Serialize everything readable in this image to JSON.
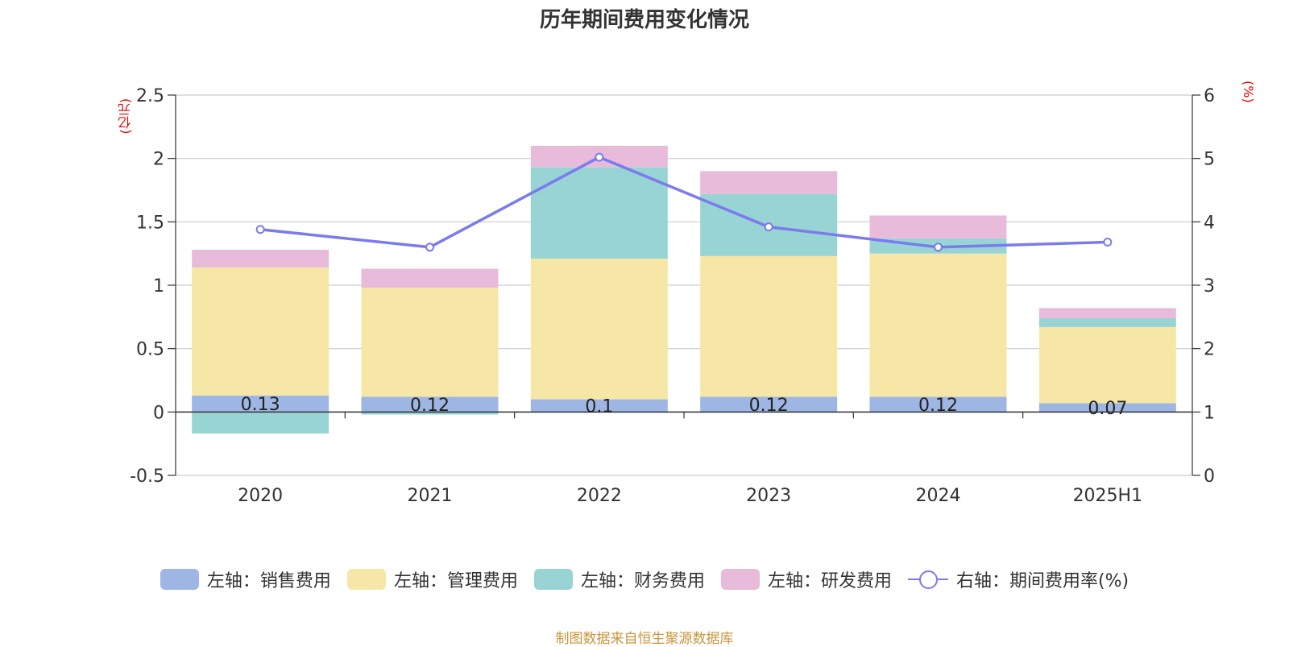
{
  "chart_data": {
    "type": "bar",
    "title": "历年期间费用变化情况",
    "left_unit": "(亿元)",
    "right_unit": "(%)",
    "categories": [
      "2020",
      "2021",
      "2022",
      "2023",
      "2024",
      "2025H1"
    ],
    "left_ylim": [
      -0.5,
      2.5
    ],
    "left_ticks": [
      -0.5,
      0,
      0.5,
      1,
      1.5,
      2,
      2.5
    ],
    "right_ylim": [
      0,
      6
    ],
    "right_ticks": [
      0,
      1,
      2,
      3,
      4,
      5,
      6
    ],
    "series": [
      {
        "name": "左轴：销售费用",
        "type": "bar",
        "axis": "left",
        "color": "#9db6e3",
        "values": [
          0.13,
          0.12,
          0.1,
          0.12,
          0.12,
          0.07
        ],
        "labels": [
          "0.13",
          "0.12",
          "0.1",
          "0.12",
          "0.12",
          "0.07"
        ]
      },
      {
        "name": "左轴：管理费用",
        "type": "bar",
        "axis": "left",
        "color": "#f7e7a6",
        "values": [
          1.01,
          0.86,
          1.11,
          1.11,
          1.13,
          0.6
        ]
      },
      {
        "name": "左轴：财务费用",
        "type": "bar",
        "axis": "left",
        "color": "#98d4d4",
        "values": [
          -0.17,
          -0.02,
          0.72,
          0.49,
          0.12,
          0.07
        ]
      },
      {
        "name": "左轴：研发费用",
        "type": "bar",
        "axis": "left",
        "color": "#e8bbdb",
        "values": [
          0.14,
          0.15,
          0.17,
          0.18,
          0.18,
          0.08
        ]
      },
      {
        "name": "右轴：期间费用率(%)",
        "type": "line",
        "axis": "right",
        "color": "#7b7bef",
        "values": [
          3.88,
          3.6,
          5.02,
          3.92,
          3.6,
          3.68
        ]
      }
    ],
    "grid": true,
    "legend_position": "bottom"
  },
  "source": "制图数据来自恒生聚源数据库"
}
